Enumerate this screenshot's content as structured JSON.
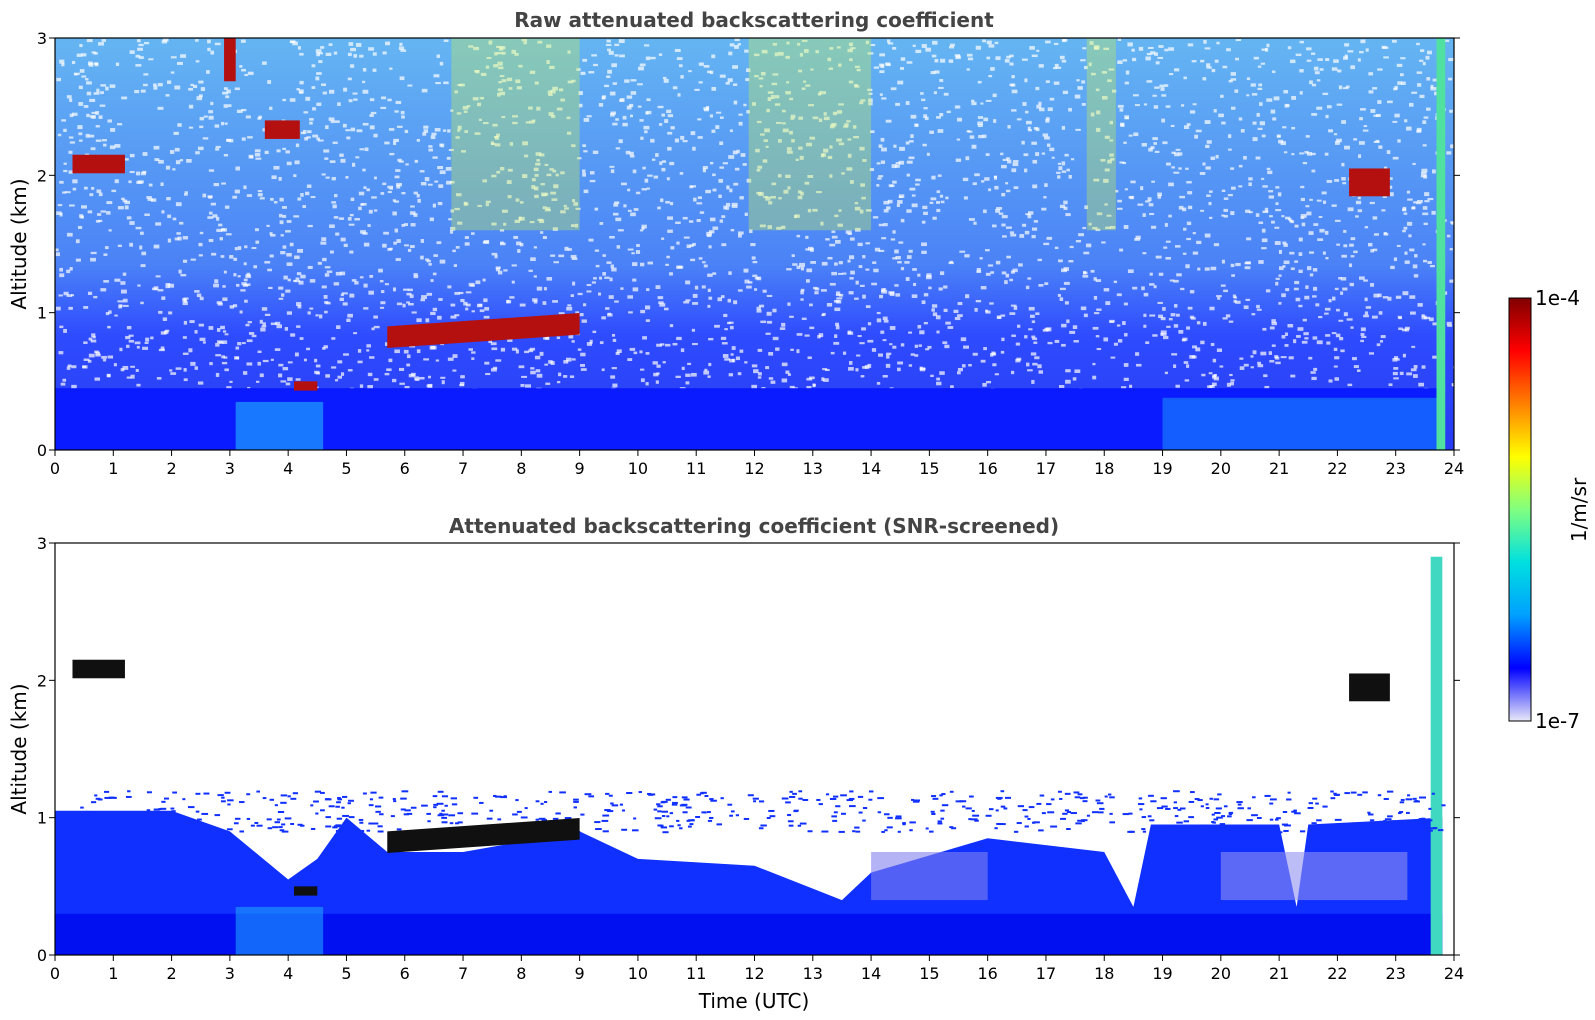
{
  "chart_data": [
    {
      "type": "heatmap",
      "title": "Raw attenuated backscattering coefficient",
      "xlabel": "",
      "ylabel": "Altitude (km)",
      "xlim": [
        0,
        24
      ],
      "ylim": [
        0,
        3
      ],
      "x_ticks": [
        "0",
        "1",
        "2",
        "3",
        "4",
        "5",
        "6",
        "7",
        "8",
        "9",
        "10",
        "11",
        "12",
        "13",
        "14",
        "15",
        "16",
        "17",
        "18",
        "19",
        "20",
        "21",
        "22",
        "23",
        "24"
      ],
      "y_ticks": [
        "0",
        "1",
        "2",
        "3"
      ],
      "grid": false,
      "features": [
        {
          "description": "aerosol boundary layer",
          "x": [
            0,
            23.8
          ],
          "y_top": [
            0.35,
            0.45
          ]
        },
        {
          "description": "cloud layer",
          "x": [
            5.7,
            9.0
          ],
          "y": [
            0.55,
            0.9
          ]
        },
        {
          "description": "cloud",
          "x": [
            4.1,
            4.5
          ],
          "y": [
            0.35,
            0.5
          ]
        },
        {
          "description": "cloud",
          "x": [
            0.3,
            1.2
          ],
          "y": [
            1.85,
            2.15
          ]
        },
        {
          "description": "cloud",
          "x": [
            22.2,
            22.9
          ],
          "y": [
            1.6,
            2.05
          ]
        },
        {
          "description": "cloud",
          "x": [
            2.9,
            3.1
          ],
          "y": [
            2.3,
            3.0
          ]
        },
        {
          "description": "cloud",
          "x": [
            3.6,
            4.2
          ],
          "y": [
            2.1,
            2.4
          ]
        }
      ]
    },
    {
      "type": "heatmap",
      "title": "Attenuated backscattering coefficient (SNR-screened)",
      "xlabel": "Time (UTC)",
      "ylabel": "Altitude (km)",
      "xlim": [
        0,
        24
      ],
      "ylim": [
        0,
        3
      ],
      "x_ticks": [
        "0",
        "1",
        "2",
        "3",
        "4",
        "5",
        "6",
        "7",
        "8",
        "9",
        "10",
        "11",
        "12",
        "13",
        "14",
        "15",
        "16",
        "17",
        "18",
        "19",
        "20",
        "21",
        "22",
        "23",
        "24"
      ],
      "y_ticks": [
        "0",
        "1",
        "2",
        "3"
      ],
      "grid": false,
      "features": [
        {
          "description": "screened boundary layer",
          "x": [
            0,
            23.8
          ],
          "y_top": [
            0.4,
            1.05
          ]
        },
        {
          "description": "cloud layer",
          "x": [
            5.7,
            9.0
          ],
          "y": [
            0.55,
            0.9
          ]
        },
        {
          "description": "cloud",
          "x": [
            4.1,
            4.5
          ],
          "y": [
            0.35,
            0.5
          ]
        },
        {
          "description": "cloud",
          "x": [
            0.3,
            1.2
          ],
          "y": [
            1.85,
            2.15
          ]
        },
        {
          "description": "cloud",
          "x": [
            22.2,
            22.9
          ],
          "y": [
            1.6,
            2.05
          ]
        }
      ]
    }
  ],
  "colorbar": {
    "label": "1/m/sr",
    "min_label": "1e-7",
    "max_label": "1e-4",
    "colormap": [
      "#e8e8f8",
      "#0000ff",
      "#00a0ff",
      "#00e0e0",
      "#80ff80",
      "#ffff00",
      "#ff8000",
      "#ff0000",
      "#800000"
    ]
  },
  "colors": {
    "bg": "#ffffff",
    "noise_blue": "#0a1eff",
    "light_blue": "#1ea0ff",
    "cyan": "#30d0e8",
    "yellow_green": "#c8f050",
    "cloud_red": "#b41010",
    "cloud_dark": "#101010",
    "title_gray": "#444444"
  }
}
